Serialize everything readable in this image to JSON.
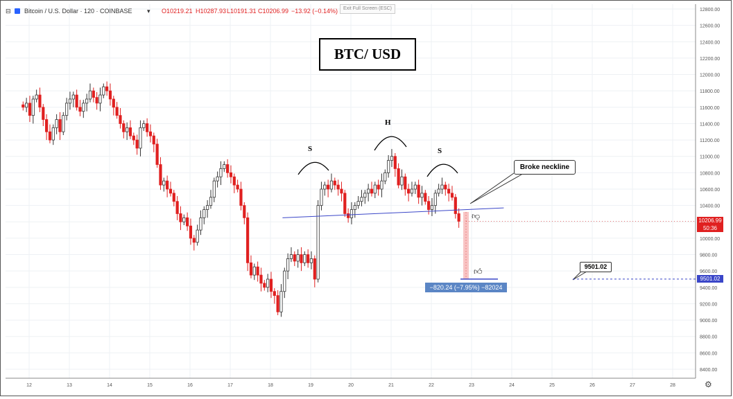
{
  "header": {
    "symbol": "Bitcoin / U.S. Dollar · 120 · COINBASE",
    "open": "O10219.21",
    "high": "H10287.93",
    "low": "L10191.31",
    "close": "C10206.99",
    "change": "−13.92 (−0.14%)"
  },
  "exit_fullscreen": "Exit Full Screen (ESC)",
  "title": "BTC/ USD",
  "annotations": {
    "left_shoulder": "S",
    "head": "H",
    "right_shoulder": "S",
    "neckline_callout": "Broke neckline",
    "target_callout": "9501.02",
    "measure": "−820.24 (−7.95%) −82024"
  },
  "price_axis": {
    "last_price": "10206.99",
    "countdown": "50:36",
    "target_price": "9501.02"
  },
  "colors": {
    "up": "#333333",
    "down": "#e02020",
    "neckline": "#3a46c8",
    "measure": "#5b86c5",
    "last_price_tag": "#e02020",
    "target_tag": "#3a46c8"
  },
  "chart_data": {
    "type": "candlestick",
    "symbol": "Bitcoin / U.S. Dollar",
    "interval": "120",
    "exchange": "COINBASE",
    "y_ticks": [
      12800,
      12600,
      12400,
      12200,
      12000,
      11800,
      11600,
      11400,
      11200,
      11000,
      10800,
      10600,
      10400,
      10200,
      10000,
      9800,
      9600,
      9400,
      9200,
      9000,
      8800,
      8600,
      8400
    ],
    "x_ticks": [
      "12",
      "13",
      "14",
      "15",
      "16",
      "17",
      "18",
      "19",
      "20",
      "21",
      "22",
      "23",
      "24",
      "25",
      "26",
      "27",
      "28"
    ],
    "ylim": [
      8200,
      12900
    ],
    "grid": true,
    "closes": [
      11600,
      11650,
      11500,
      11700,
      11750,
      11600,
      11450,
      11300,
      11200,
      11350,
      11450,
      11300,
      11500,
      11650,
      11700,
      11750,
      11600,
      11550,
      11650,
      11700,
      11800,
      11720,
      11650,
      11750,
      11850,
      11800,
      11700,
      11600,
      11500,
      11400,
      11300,
      11350,
      11250,
      11200,
      11100,
      11350,
      11400,
      11300,
      11250,
      11150,
      10900,
      10650,
      10700,
      10600,
      10550,
      10450,
      10300,
      10200,
      10250,
      10150,
      10000,
      9950,
      10100,
      10250,
      10350,
      10400,
      10500,
      10700,
      10750,
      10850,
      10900,
      10800,
      10750,
      10650,
      10600,
      10400,
      10250,
      9700,
      9550,
      9650,
      9550,
      9450,
      9400,
      9500,
      9350,
      9300,
      9100,
      9350,
      9600,
      9750,
      9800,
      9720,
      9800,
      9700,
      9800,
      9700,
      9750,
      9500,
      10400,
      10600,
      10650,
      10600,
      10700,
      10650,
      10600,
      10550,
      10300,
      10250,
      10350,
      10400,
      10450,
      10500,
      10550,
      10600,
      10550,
      10650,
      10600,
      10700,
      10800,
      10950,
      11000,
      10850,
      10650,
      10750,
      10600,
      10550,
      10600,
      10650,
      10500,
      10550,
      10450,
      10350,
      10400,
      10550,
      10600,
      10650,
      10600,
      10550,
      10500,
      10300,
      10206.99
    ],
    "neckline": [
      {
        "date": "18.3",
        "price": 10250
      },
      {
        "date": "23.8",
        "price": 10370
      }
    ],
    "breakdown_target": {
      "price": 9501.02,
      "measured_move": -820.24,
      "percent": -7.95
    },
    "last_price": 10206.99
  }
}
